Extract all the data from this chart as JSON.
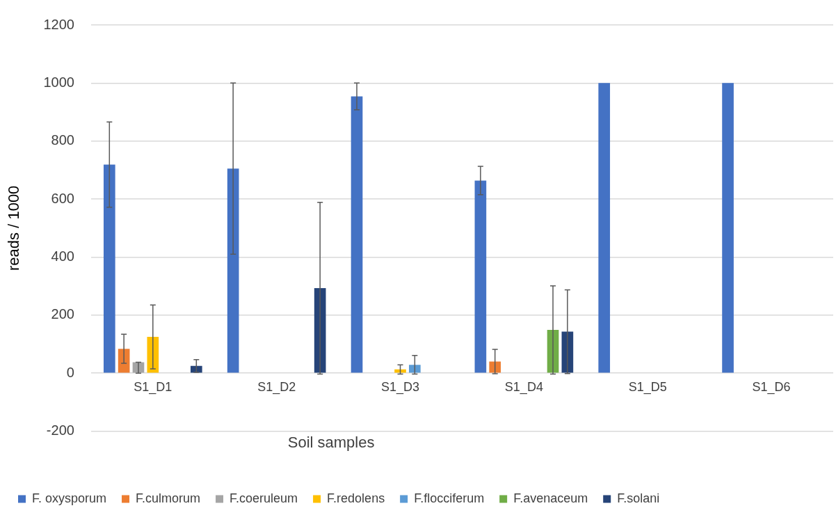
{
  "chart_data": {
    "type": "bar",
    "xlabel": "Soil samples",
    "ylabel": "reads / 1000",
    "categories": [
      "S1_D1",
      "S1_D2",
      "S1_D3",
      "S1_D4",
      "S1_D5",
      "S1_D6"
    ],
    "ylim": [
      -200,
      1200
    ],
    "yticks": [
      -200,
      0,
      200,
      400,
      600,
      800,
      1000,
      1200
    ],
    "grid": "y",
    "legend": "bottom",
    "series": [
      {
        "name": "F. oxysporum",
        "color": "#4472c4",
        "values": [
          719,
          705,
          954,
          664,
          1000,
          1000
        ],
        "errors": [
          147,
          295,
          46,
          49,
          null,
          null
        ]
      },
      {
        "name": "F.culmorum",
        "color": "#ed7d31",
        "values": [
          84,
          0,
          0,
          40,
          0,
          0
        ],
        "errors": [
          50,
          null,
          null,
          42,
          null,
          null
        ]
      },
      {
        "name": "F.coeruleum",
        "color": "#a5a5a5",
        "values": [
          38,
          0,
          0,
          0,
          0,
          0
        ],
        "errors": [
          [
            0,
            38
          ],
          null,
          null,
          null,
          null,
          null
        ]
      },
      {
        "name": "F.redolens",
        "color": "#ffc000",
        "values": [
          125,
          0,
          13,
          0,
          0,
          0
        ],
        "errors": [
          110,
          null,
          16,
          null,
          null,
          null
        ]
      },
      {
        "name": "F.flocciferum",
        "color": "#5b9bd5",
        "values": [
          0,
          0,
          29,
          0,
          0,
          0
        ],
        "errors": [
          null,
          null,
          32,
          null,
          null,
          null
        ]
      },
      {
        "name": "F.avenaceum",
        "color": "#70ad47",
        "values": [
          0,
          0,
          0,
          149,
          0,
          0
        ],
        "errors": [
          null,
          null,
          null,
          152,
          null,
          null
        ]
      },
      {
        "name": "F.solani",
        "color": "#264478",
        "values": [
          25,
          293,
          0,
          143,
          0,
          0
        ],
        "errors": [
          22,
          296,
          null,
          144,
          null,
          null
        ]
      }
    ]
  }
}
